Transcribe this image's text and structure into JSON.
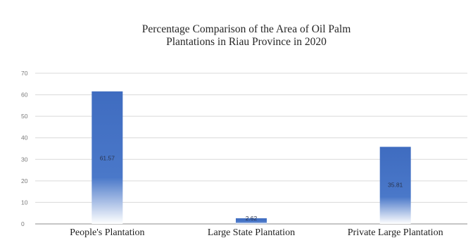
{
  "chart_data": {
    "type": "bar",
    "title_lines": [
      "Percentage Comparison of the Area of Oil Palm",
      "Plantations in Riau Province in 2020"
    ],
    "categories": [
      "People's Plantation",
      "Large State Plantation",
      "Private Large Plantation"
    ],
    "values": [
      61.57,
      2.62,
      35.81
    ],
    "data_labels": [
      "61.57",
      "2.62",
      "35.81"
    ],
    "xlabel": "",
    "ylabel": "",
    "ylim": [
      0,
      70
    ],
    "yticks": [
      0,
      10,
      20,
      30,
      40,
      50,
      60,
      70
    ],
    "grid": true,
    "legend": "none",
    "bar_color": "#4472c4"
  }
}
